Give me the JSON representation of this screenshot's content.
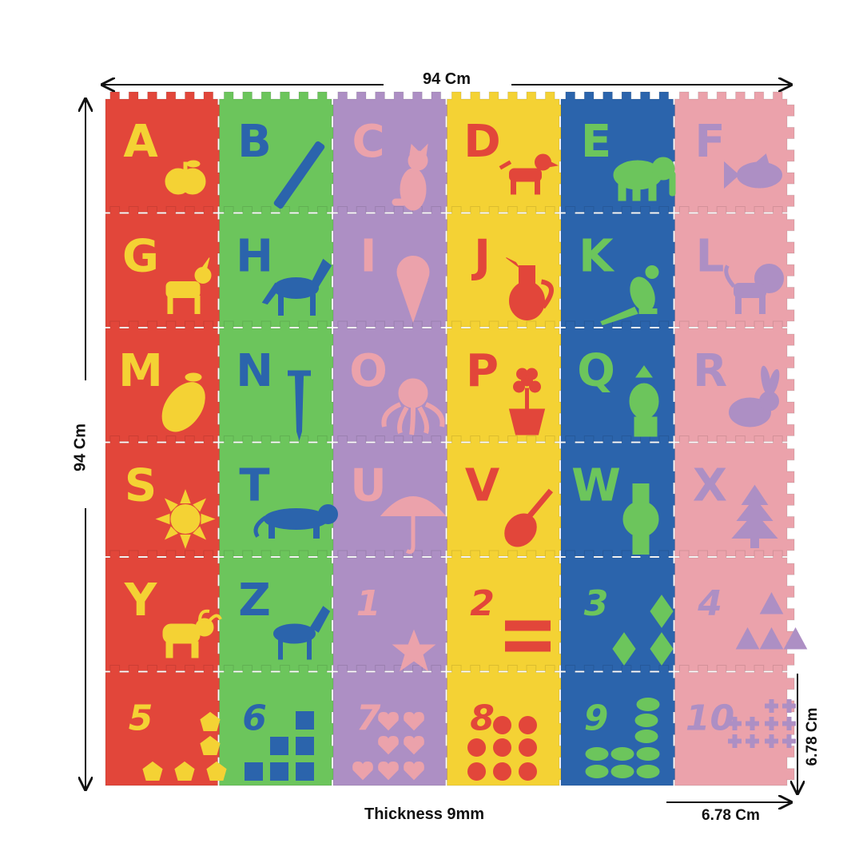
{
  "dimensions": {
    "width_label": "94 Cm",
    "height_label": "94 Cm",
    "tile_height_label": "6.78 Cm",
    "tile_width_label": "6.78 Cm",
    "thickness_label": "Thickness 9mm"
  },
  "columns": [
    {
      "name": "red",
      "color": "#e2463a"
    },
    {
      "name": "green",
      "color": "#6cc55c"
    },
    {
      "name": "purple",
      "color": "#ad8fc4"
    },
    {
      "name": "yellow",
      "color": "#f4d234"
    },
    {
      "name": "blue",
      "color": "#2b64ac"
    },
    {
      "name": "pink",
      "color": "#eba2ab"
    }
  ],
  "tiles": [
    {
      "glyph": "A",
      "icon": "apple-icon",
      "fg": "#f4d234"
    },
    {
      "glyph": "B",
      "icon": "bat-icon",
      "fg": "#2b64ac"
    },
    {
      "glyph": "C",
      "icon": "cat-icon",
      "fg": "#eba2ab"
    },
    {
      "glyph": "D",
      "icon": "dog-icon",
      "fg": "#e2463a"
    },
    {
      "glyph": "E",
      "icon": "elephant-icon",
      "fg": "#6cc55c"
    },
    {
      "glyph": "F",
      "icon": "fish-icon",
      "fg": "#ad8fc4"
    },
    {
      "glyph": "G",
      "icon": "goat-icon",
      "fg": "#f4d234"
    },
    {
      "glyph": "H",
      "icon": "horse-icon",
      "fg": "#2b64ac"
    },
    {
      "glyph": "I",
      "icon": "ice-cream-icon",
      "fg": "#eba2ab"
    },
    {
      "glyph": "J",
      "icon": "jug-icon",
      "fg": "#e2463a"
    },
    {
      "glyph": "K",
      "icon": "kangaroo-icon",
      "fg": "#6cc55c"
    },
    {
      "glyph": "L",
      "icon": "lion-icon",
      "fg": "#ad8fc4"
    },
    {
      "glyph": "M",
      "icon": "mango-icon",
      "fg": "#f4d234"
    },
    {
      "glyph": "N",
      "icon": "nail-icon",
      "fg": "#2b64ac"
    },
    {
      "glyph": "O",
      "icon": "octopus-icon",
      "fg": "#eba2ab"
    },
    {
      "glyph": "P",
      "icon": "flower-pot-icon",
      "fg": "#e2463a"
    },
    {
      "glyph": "Q",
      "icon": "queen-icon",
      "fg": "#6cc55c"
    },
    {
      "glyph": "R",
      "icon": "rabbit-icon",
      "fg": "#ad8fc4"
    },
    {
      "glyph": "S",
      "icon": "sun-icon",
      "fg": "#f4d234"
    },
    {
      "glyph": "T",
      "icon": "tiger-icon",
      "fg": "#2b64ac"
    },
    {
      "glyph": "U",
      "icon": "umbrella-icon",
      "fg": "#eba2ab"
    },
    {
      "glyph": "V",
      "icon": "violin-icon",
      "fg": "#e2463a"
    },
    {
      "glyph": "W",
      "icon": "watch-icon",
      "fg": "#6cc55c"
    },
    {
      "glyph": "X",
      "icon": "xmas-tree-icon",
      "fg": "#ad8fc4"
    },
    {
      "glyph": "Y",
      "icon": "yak-icon",
      "fg": "#f4d234"
    },
    {
      "glyph": "Z",
      "icon": "zebra-icon",
      "fg": "#2b64ac"
    },
    {
      "glyph": "1",
      "icon": "star-icon",
      "fg": "#eba2ab",
      "count": 1
    },
    {
      "glyph": "2",
      "icon": "bar-icon",
      "fg": "#e2463a",
      "count": 2
    },
    {
      "glyph": "3",
      "icon": "diamond-icon",
      "fg": "#6cc55c",
      "count": 3
    },
    {
      "glyph": "4",
      "icon": "triangle-icon",
      "fg": "#ad8fc4",
      "count": 4
    },
    {
      "glyph": "5",
      "icon": "pentagon-icon",
      "fg": "#f4d234",
      "count": 5
    },
    {
      "glyph": "6",
      "icon": "square-icon",
      "fg": "#2b64ac",
      "count": 6
    },
    {
      "glyph": "7",
      "icon": "heart-icon",
      "fg": "#eba2ab",
      "count": 7
    },
    {
      "glyph": "8",
      "icon": "circle-icon",
      "fg": "#e2463a",
      "count": 8
    },
    {
      "glyph": "9",
      "icon": "oval-icon",
      "fg": "#6cc55c",
      "count": 9
    },
    {
      "glyph": "10",
      "icon": "plus-icon",
      "fg": "#ad8fc4",
      "count": 10
    }
  ]
}
